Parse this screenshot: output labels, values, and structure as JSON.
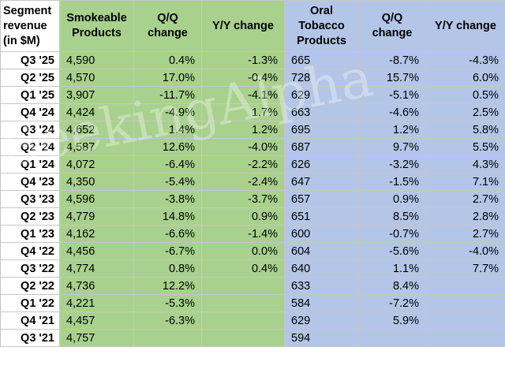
{
  "chart_data": {
    "type": "table",
    "columns": [
      [
        "Segment",
        "revenue",
        "(in $M)"
      ],
      [
        "Smokeable",
        "Products"
      ],
      [
        "Q/Q",
        "change"
      ],
      [
        "Y/Y change"
      ],
      [
        "Oral",
        "Tobacco",
        "Products"
      ],
      [
        "Q/Q",
        "change"
      ],
      [
        "Y/Y change"
      ]
    ],
    "rows": [
      {
        "quarter": "Q3 '25",
        "values": [
          "4,590",
          "0.4%",
          "-1.3%",
          "665",
          "-8.7%",
          "-4.3%"
        ]
      },
      {
        "quarter": "Q2 '25",
        "values": [
          "4,570",
          "17.0%",
          "-0.4%",
          "728",
          "15.7%",
          "6.0%"
        ]
      },
      {
        "quarter": "Q1 '25",
        "values": [
          "3,907",
          "-11.7%",
          "-4.1%",
          "629",
          "-5.1%",
          "0.5%"
        ]
      },
      {
        "quarter": "Q4 '24",
        "values": [
          "4,424",
          "-4.9%",
          "1.7%",
          "663",
          "-4.6%",
          "2.5%"
        ]
      },
      {
        "quarter": "Q3 '24",
        "values": [
          "4,652",
          "1.4%",
          "1.2%",
          "695",
          "1.2%",
          "5.8%"
        ]
      },
      {
        "quarter": "Q2 '24",
        "values": [
          "4,587",
          "12.6%",
          "-4.0%",
          "687",
          "9.7%",
          "5.5%"
        ]
      },
      {
        "quarter": "Q1 '24",
        "values": [
          "4,072",
          "-6.4%",
          "-2.2%",
          "626",
          "-3.2%",
          "4.3%"
        ]
      },
      {
        "quarter": "Q4 '23",
        "values": [
          "4,350",
          "-5.4%",
          "-2.4%",
          "647",
          "-1.5%",
          "7.1%"
        ]
      },
      {
        "quarter": "Q3 '23",
        "values": [
          "4,596",
          "-3.8%",
          "-3.7%",
          "657",
          "0.9%",
          "2.7%"
        ]
      },
      {
        "quarter": "Q2 '23",
        "values": [
          "4,779",
          "14.8%",
          "0.9%",
          "651",
          "8.5%",
          "2.8%"
        ]
      },
      {
        "quarter": "Q1 '23",
        "values": [
          "4,162",
          "-6.6%",
          "-1.4%",
          "600",
          "-0.7%",
          "2.7%"
        ]
      },
      {
        "quarter": "Q4 '22",
        "values": [
          "4,456",
          "-6.7%",
          "0.0%",
          "604",
          "-5.6%",
          "-4.0%"
        ]
      },
      {
        "quarter": "Q3 '22",
        "values": [
          "4,774",
          "0.8%",
          "0.4%",
          "640",
          "1.1%",
          "7.7%"
        ]
      },
      {
        "quarter": "Q2 '22",
        "values": [
          "4,736",
          "12.2%",
          "",
          "633",
          "8.4%",
          ""
        ]
      },
      {
        "quarter": "Q1 '22",
        "values": [
          "4,221",
          "-5.3%",
          "",
          "584",
          "-7.2%",
          ""
        ]
      },
      {
        "quarter": "Q4 '21",
        "values": [
          "4,457",
          "-6.3%",
          "",
          "629",
          "5.9%",
          ""
        ]
      },
      {
        "quarter": "Q3 '21",
        "values": [
          "4,757",
          "",
          "",
          "594",
          "",
          ""
        ]
      }
    ],
    "column_colors": [
      "#ffffff",
      "#a9d18e",
      "#a9d18e",
      "#a9d18e",
      "#b4c6e7",
      "#b4c6e7",
      "#b4c6e7"
    ]
  },
  "watermark": "SeekingAlpha"
}
